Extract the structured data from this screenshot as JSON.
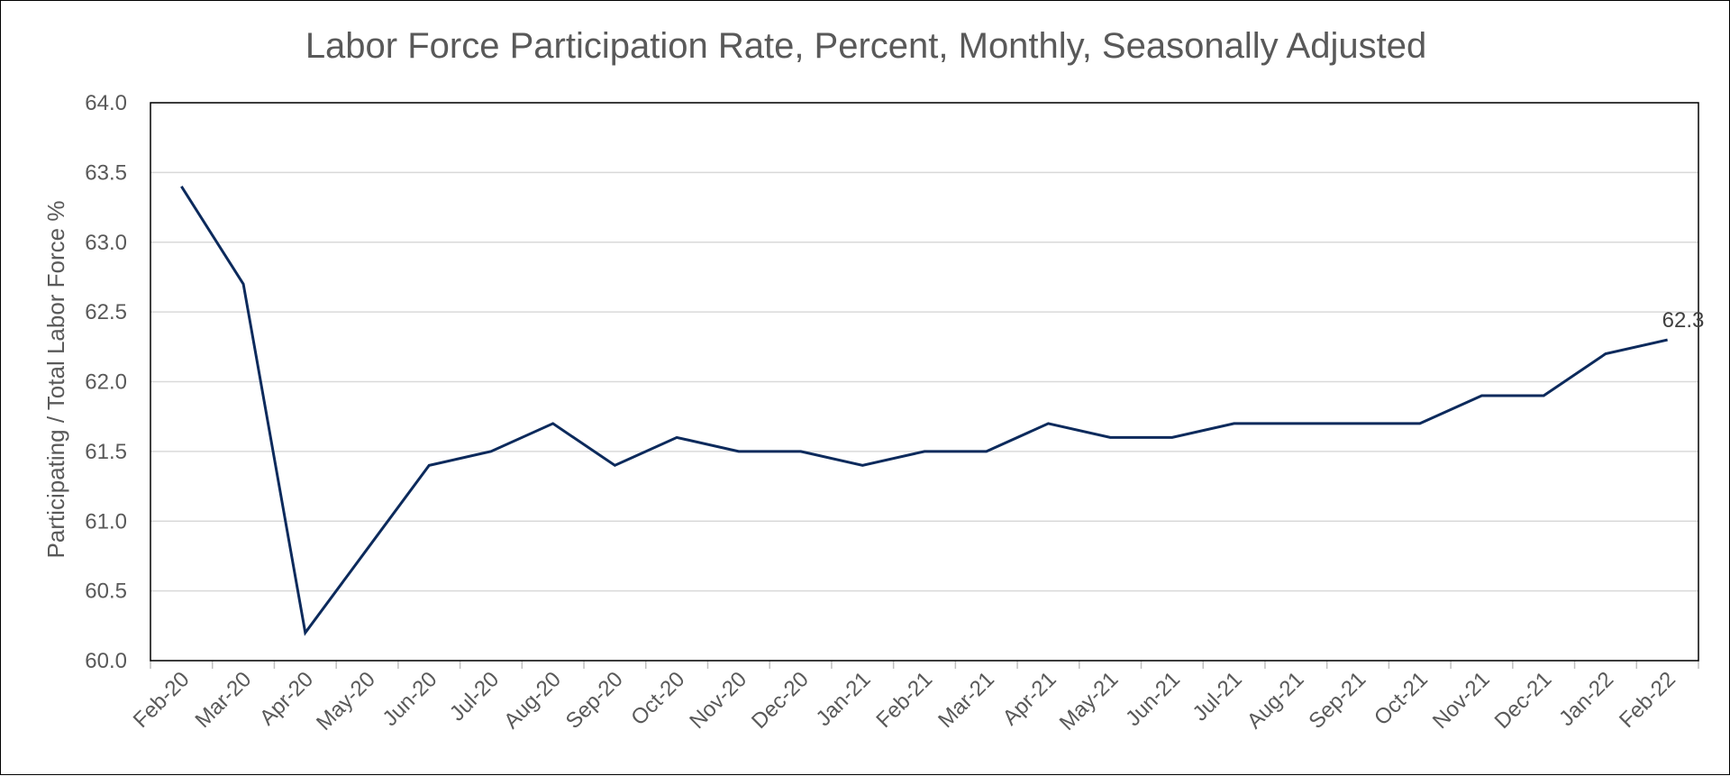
{
  "chart_data": {
    "type": "line",
    "title": "Labor Force Participation Rate, Percent, Monthly, Seasonally Adjusted",
    "xlabel": "",
    "ylabel": "Participating / Total Labor Force %",
    "ylim": [
      60.0,
      64.0
    ],
    "yticks": [
      "60.0",
      "60.5",
      "61.0",
      "61.5",
      "62.0",
      "62.5",
      "63.0",
      "63.5",
      "64.0"
    ],
    "categories": [
      "Feb-20",
      "Mar-20",
      "Apr-20",
      "May-20",
      "Jun-20",
      "Jul-20",
      "Aug-20",
      "Sep-20",
      "Oct-20",
      "Nov-20",
      "Dec-20",
      "Jan-21",
      "Feb-21",
      "Mar-21",
      "Apr-21",
      "May-21",
      "Jun-21",
      "Jul-21",
      "Aug-21",
      "Sep-21",
      "Oct-21",
      "Nov-21",
      "Dec-21",
      "Jan-22",
      "Feb-22"
    ],
    "series": [
      {
        "values": [
          63.4,
          62.7,
          60.2,
          60.8,
          61.4,
          61.5,
          61.7,
          61.4,
          61.6,
          61.5,
          61.5,
          61.4,
          61.5,
          61.5,
          61.7,
          61.6,
          61.6,
          61.7,
          61.7,
          61.7,
          61.7,
          61.9,
          61.9,
          62.2,
          62.3
        ],
        "color": "#0c2a5c"
      }
    ],
    "data_labels": [
      {
        "index": 24,
        "text": "62.3"
      }
    ],
    "grid": true,
    "legend": "none"
  }
}
